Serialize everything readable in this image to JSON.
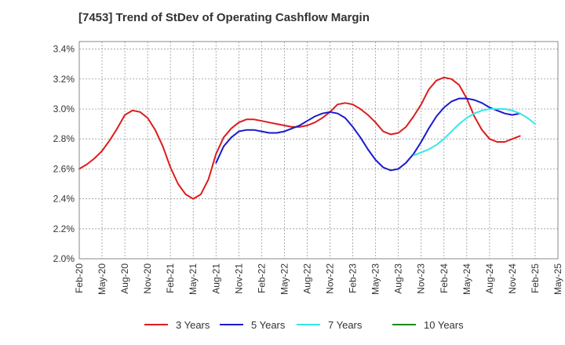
{
  "chart_data": {
    "type": "line",
    "title": "[7453]  Trend of StDev of Operating Cashflow Margin",
    "xlabel": "",
    "ylabel": "",
    "ylim": [
      2.0,
      3.45
    ],
    "yticks": [
      2.0,
      2.2,
      2.4,
      2.6,
      2.8,
      3.0,
      3.2,
      3.4
    ],
    "ytick_labels": [
      "2.0%",
      "2.2%",
      "2.4%",
      "2.6%",
      "2.8%",
      "3.0%",
      "3.2%",
      "3.4%"
    ],
    "xtick_labels": [
      "Feb-20",
      "May-20",
      "Aug-20",
      "Nov-20",
      "Feb-21",
      "May-21",
      "Aug-21",
      "Nov-21",
      "Feb-22",
      "May-22",
      "Aug-22",
      "Nov-22",
      "Feb-23",
      "May-23",
      "Aug-23",
      "Nov-23",
      "Feb-24",
      "May-24",
      "Aug-24",
      "Nov-24",
      "Feb-25",
      "May-25"
    ],
    "grid": true,
    "legend_position": "bottom",
    "series": [
      {
        "name": "3 Years",
        "color": "#dd1c1c",
        "start_index": 0,
        "values": [
          2.6,
          2.63,
          2.67,
          2.72,
          2.79,
          2.87,
          2.96,
          2.99,
          2.98,
          2.94,
          2.86,
          2.75,
          2.61,
          2.5,
          2.43,
          2.4,
          2.43,
          2.53,
          2.7,
          2.81,
          2.87,
          2.91,
          2.93,
          2.93,
          2.92,
          2.91,
          2.9,
          2.89,
          2.88,
          2.88,
          2.89,
          2.91,
          2.94,
          2.98,
          3.03,
          3.04,
          3.03,
          3.0,
          2.96,
          2.91,
          2.85,
          2.83,
          2.84,
          2.88,
          2.95,
          3.03,
          3.13,
          3.19,
          3.21,
          3.2,
          3.16,
          3.07,
          2.95,
          2.86,
          2.8,
          2.78,
          2.78,
          2.8,
          2.82
        ]
      },
      {
        "name": "5 Years",
        "color": "#1a1acc",
        "start_index": 18,
        "values": [
          2.64,
          2.75,
          2.81,
          2.85,
          2.86,
          2.86,
          2.85,
          2.84,
          2.84,
          2.85,
          2.87,
          2.89,
          2.92,
          2.95,
          2.97,
          2.98,
          2.97,
          2.94,
          2.88,
          2.81,
          2.73,
          2.66,
          2.61,
          2.59,
          2.6,
          2.64,
          2.7,
          2.78,
          2.87,
          2.95,
          3.01,
          3.05,
          3.07,
          3.07,
          3.06,
          3.04,
          3.01,
          2.99,
          2.97,
          2.96,
          2.97
        ]
      },
      {
        "name": "7 Years",
        "color": "#33e8e8",
        "start_index": 44,
        "values": [
          2.69,
          2.71,
          2.73,
          2.76,
          2.8,
          2.85,
          2.9,
          2.94,
          2.97,
          2.99,
          3.0,
          3.0,
          3.0,
          2.99,
          2.97,
          2.94,
          2.9
        ]
      },
      {
        "name": "10 Years",
        "color": "#1a8a1a",
        "start_index": 0,
        "values": []
      }
    ]
  }
}
